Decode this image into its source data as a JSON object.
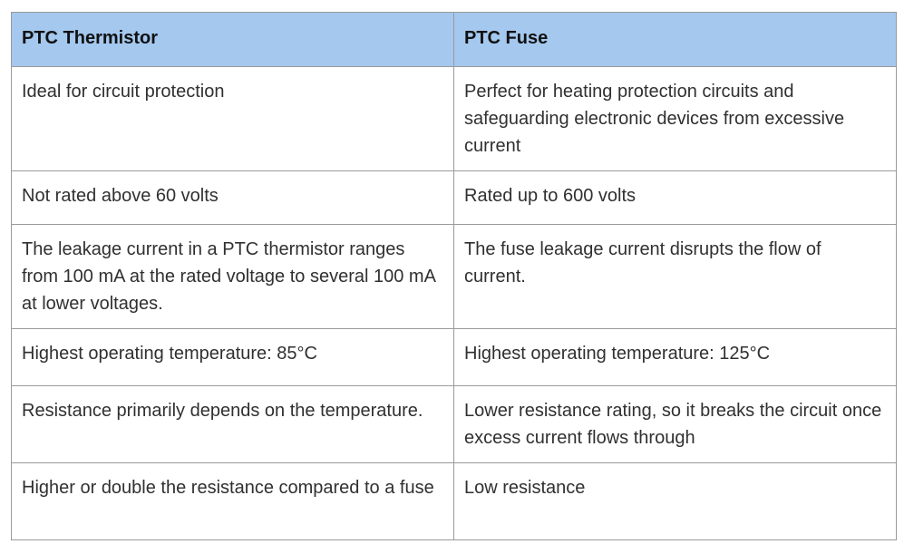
{
  "table": {
    "headers": [
      "PTC Thermistor",
      "PTC Fuse"
    ],
    "rows": [
      [
        "Ideal for circuit protection",
        "Perfect for heating protection circuits and safeguarding electronic devices from excessive current"
      ],
      [
        "Not rated above 60 volts",
        "Rated up to 600 volts"
      ],
      [
        "The leakage current in a PTC thermistor ranges from 100 mA at the rated voltage to several 100 mA at lower voltages.",
        "The fuse leakage current disrupts the flow of current."
      ],
      [
        "Highest operating temperature: 85°C",
        "Highest operating temperature: 125°C"
      ],
      [
        "Resistance primarily depends on the temperature.",
        "Lower resistance rating, so it breaks the circuit once excess current flows through"
      ],
      [
        "Higher or double the resistance compared to a fuse",
        "Low resistance"
      ]
    ]
  },
  "colors": {
    "header_bg": "#a4c8ee",
    "border": "#9a9a9a",
    "text": "#303030"
  }
}
